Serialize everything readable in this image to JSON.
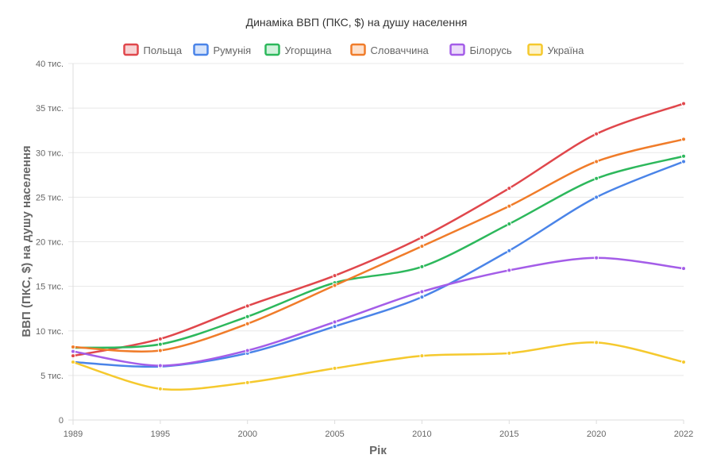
{
  "chart_data": {
    "type": "line",
    "title": "Динаміка ВВП (ПКС, $) на душу населення",
    "xlabel": "Рік",
    "ylabel": "ВВП (ПКС, $) на душу населення",
    "categories": [
      "1989",
      "1995",
      "2000",
      "2005",
      "2010",
      "2015",
      "2020",
      "2022"
    ],
    "ylim": [
      0,
      40000
    ],
    "yticks": [
      0,
      5000,
      10000,
      15000,
      20000,
      25000,
      30000,
      35000,
      40000
    ],
    "ytick_labels": [
      "0",
      "5 тис.",
      "10 тис.",
      "15 тис.",
      "20 тис.",
      "25 тис.",
      "30 тис.",
      "35 тис.",
      "40 тис."
    ],
    "grid": true,
    "legend_position": "top",
    "series": [
      {
        "name": "Польща",
        "color": "#e0474c",
        "fill": "#f7d4d5",
        "values": [
          7200,
          9100,
          12800,
          16200,
          20500,
          26000,
          32100,
          35500
        ]
      },
      {
        "name": "Румунія",
        "color": "#4a84e8",
        "fill": "#d7e4fa",
        "values": [
          6500,
          6000,
          7500,
          10500,
          13800,
          19000,
          25000,
          29000
        ]
      },
      {
        "name": "Угорщина",
        "color": "#2db85c",
        "fill": "#d2f2dd",
        "values": [
          8100,
          8500,
          11600,
          15400,
          17200,
          22000,
          27100,
          29600
        ]
      },
      {
        "name": "Словаччина",
        "color": "#f07c2a",
        "fill": "#fde1cd",
        "values": [
          8200,
          7800,
          10800,
          15100,
          19500,
          24000,
          29000,
          31500
        ]
      },
      {
        "name": "Білорусь",
        "color": "#a45de8",
        "fill": "#ecdcfa",
        "values": [
          7700,
          6100,
          7800,
          11000,
          14400,
          16800,
          18200,
          17000
        ]
      },
      {
        "name": "Україна",
        "color": "#f5c92e",
        "fill": "#fdf3cc",
        "values": [
          6500,
          3500,
          4200,
          5800,
          7200,
          7500,
          8700,
          6500
        ]
      }
    ]
  }
}
